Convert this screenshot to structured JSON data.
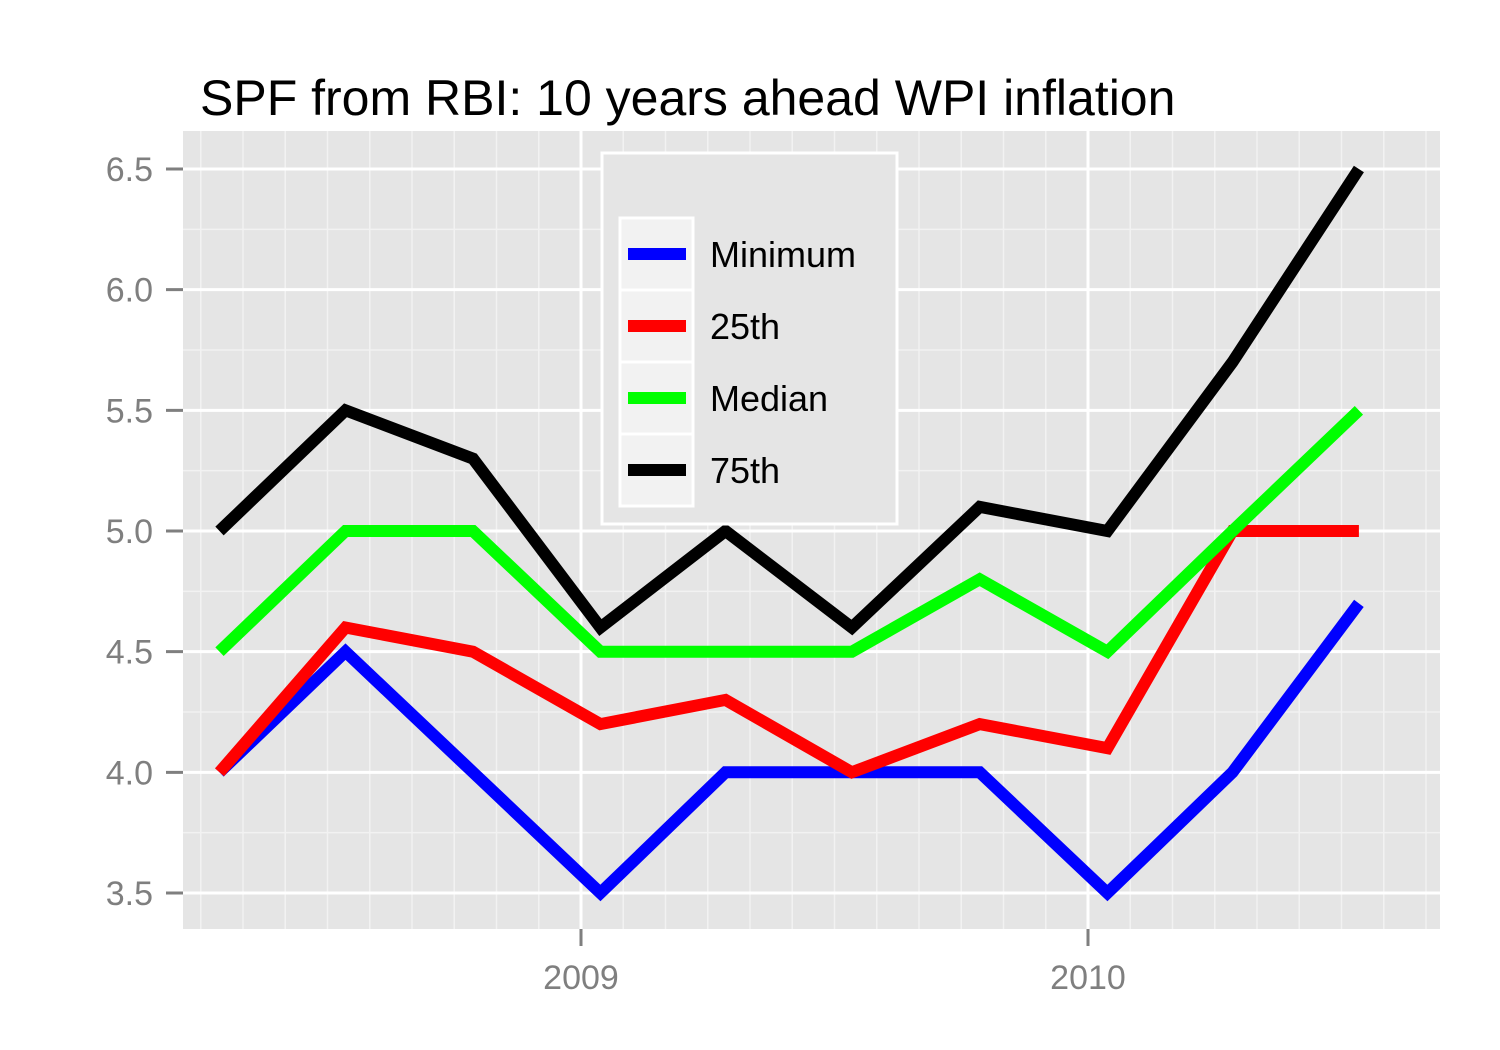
{
  "chart_data": {
    "type": "line",
    "title": "SPF from RBI: 10 years ahead WPI inflation",
    "xlabel": "",
    "ylabel": "",
    "x_tick_labels": [
      "2009",
      "2010"
    ],
    "y_ticks": [
      "3.5",
      "4.0",
      "4.5",
      "5.0",
      "5.5",
      "6.0",
      "6.5"
    ],
    "ylim": [
      3.35,
      6.65
    ],
    "x": [
      "2008-04",
      "2008-07",
      "2008-10",
      "2009-01",
      "2009-04",
      "2009-07",
      "2009-10",
      "2010-01",
      "2010-04",
      "2010-07"
    ],
    "series": [
      {
        "name": "Minimum",
        "color": "#0000ff",
        "values": [
          4.0,
          4.5,
          4.0,
          3.5,
          4.0,
          4.0,
          4.0,
          3.5,
          4.0,
          4.7
        ]
      },
      {
        "name": "25th",
        "color": "#ff0000",
        "values": [
          4.0,
          4.6,
          4.5,
          4.2,
          4.3,
          4.0,
          4.2,
          4.1,
          5.0,
          5.0
        ]
      },
      {
        "name": "Median",
        "color": "#00ff00",
        "values": [
          4.5,
          5.0,
          5.0,
          4.5,
          4.5,
          4.5,
          4.8,
          4.5,
          5.0,
          5.5
        ]
      },
      {
        "name": "75th",
        "color": "#000000",
        "values": [
          5.0,
          5.5,
          5.3,
          4.6,
          5.0,
          4.6,
          5.1,
          5.0,
          5.7,
          6.5
        ]
      }
    ],
    "grid": true,
    "panel_background": "#e5e5e5",
    "legend_position": "top-center"
  }
}
